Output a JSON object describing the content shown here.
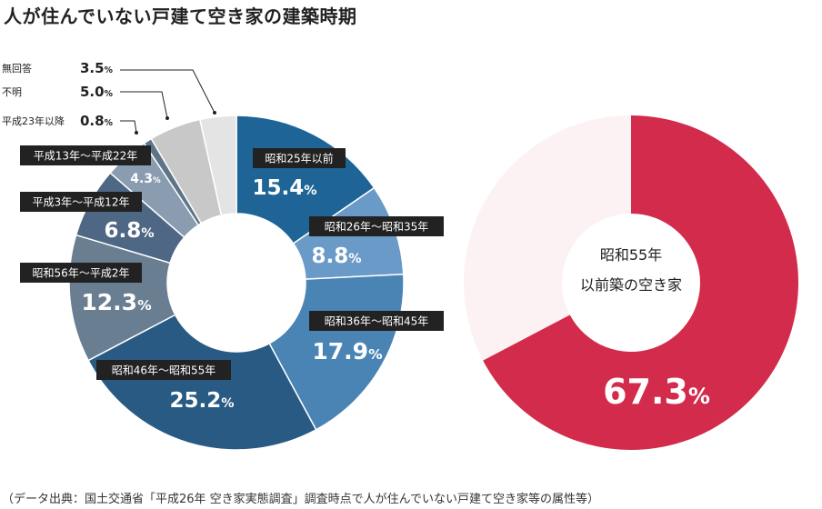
{
  "title": "人が住んでいない戸建て空き家の建築時期",
  "note": "（データ出典：国土交通省「平成26年 空き家実態調査」調査時点で人が住んでいない戸建て空き家等の属性等）",
  "colors": {
    "s0": "#1f6496",
    "s1": "#6a9ac8",
    "s2": "#4a84b4",
    "s3": "#285a84",
    "s4": "#6a7e92",
    "s5": "#4e6784",
    "s6": "#8a9cb0",
    "s7": "#5e7488",
    "s8": "#c8c8c8",
    "s9": "#e4e4e4",
    "highlight": "#d22b4b",
    "rest": "#fdf2f3",
    "tag_bg": "#222222"
  },
  "chart_data": [
    {
      "type": "pie",
      "series": [
        {
          "name": "昭和25年以前",
          "value": 15.4,
          "label": "15.4%"
        },
        {
          "name": "昭和26年～昭和35年",
          "value": 8.8,
          "label": "8.8%"
        },
        {
          "name": "昭和36年～昭和45年",
          "value": 17.9,
          "label": "17.9%"
        },
        {
          "name": "昭和46年～昭和55年",
          "value": 25.2,
          "label": "25.2%"
        },
        {
          "name": "昭和56年～平成2年",
          "value": 12.3,
          "label": "12.3%"
        },
        {
          "name": "平成3年～平成12年",
          "value": 6.8,
          "label": "6.8%"
        },
        {
          "name": "平成13年～平成22年",
          "value": 4.3,
          "label": "4.3%"
        },
        {
          "name": "平成23年以降",
          "value": 0.8,
          "label": "0.8%"
        },
        {
          "name": "不明",
          "value": 5.0,
          "label": "5.0%"
        },
        {
          "name": "無回答",
          "value": 3.5,
          "label": "3.5%"
        }
      ]
    },
    {
      "type": "pie",
      "center_line1": "昭和55年",
      "center_line2": "以前築の空き家",
      "value": 67.3,
      "label": "67.3%"
    }
  ]
}
